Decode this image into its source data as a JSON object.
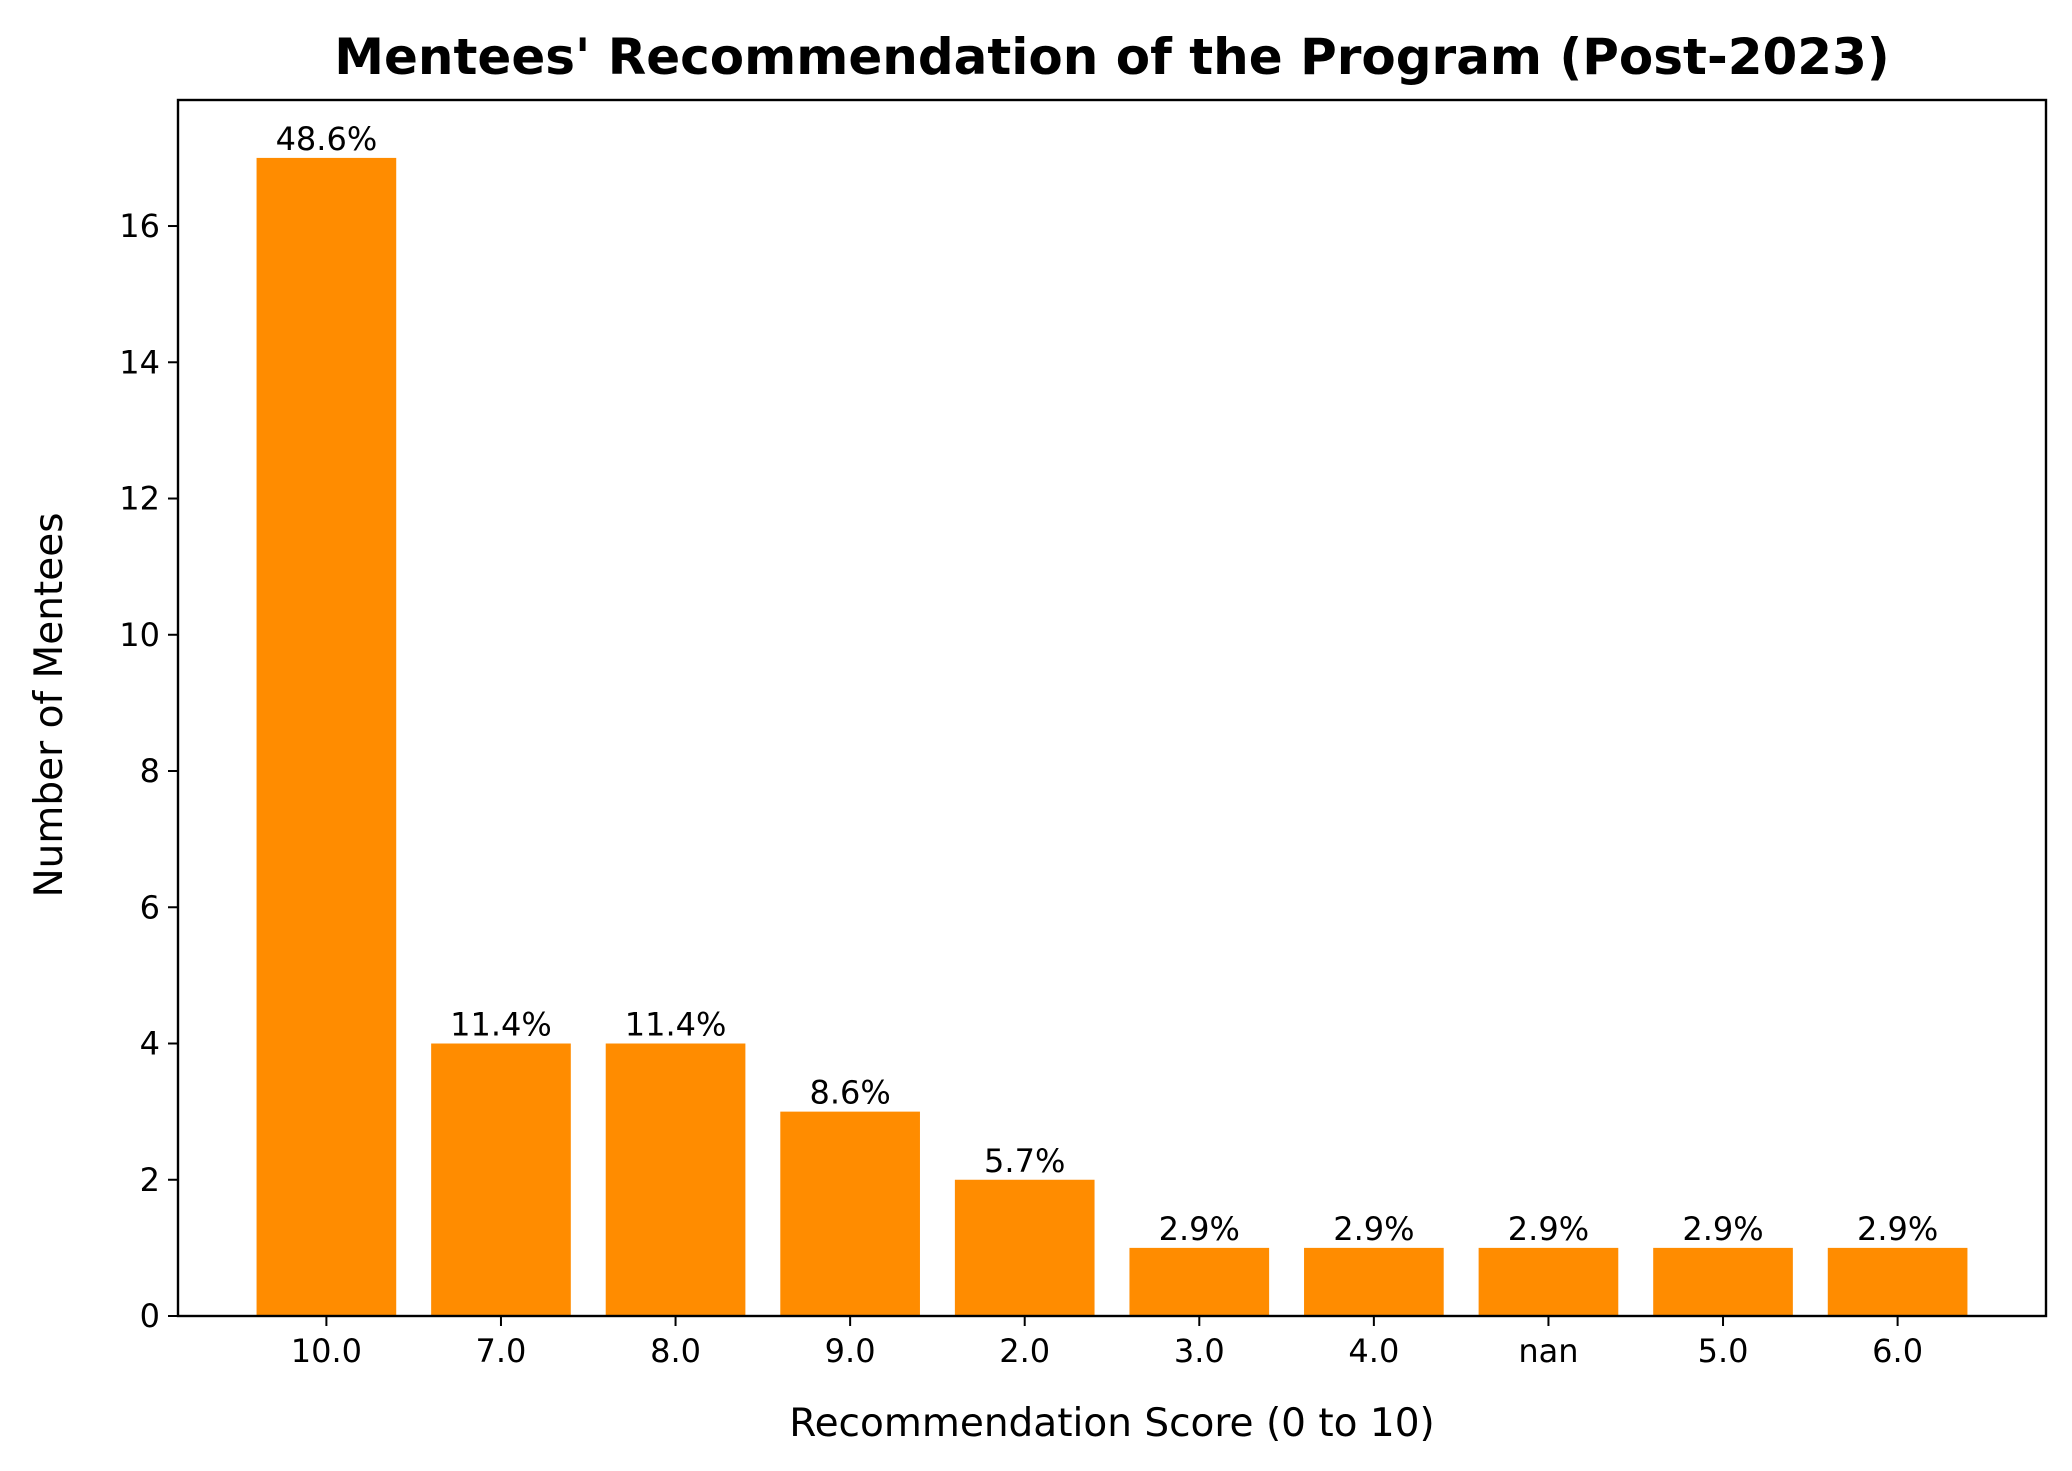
{
  "chart_data": {
    "type": "bar",
    "title": "Mentees' Recommendation of the Program (Post-2023)",
    "xlabel": "Recommendation Score (0 to 10)",
    "ylabel": "Number of Mentees",
    "categories": [
      "10.0",
      "7.0",
      "8.0",
      "9.0",
      "2.0",
      "3.0",
      "4.0",
      "nan",
      "5.0",
      "6.0"
    ],
    "values": [
      17,
      4,
      4,
      3,
      2,
      1,
      1,
      1,
      1,
      1
    ],
    "percent_labels": [
      "48.6%",
      "11.4%",
      "11.4%",
      "8.6%",
      "5.7%",
      "2.9%",
      "2.9%",
      "2.9%",
      "2.9%",
      "2.9%"
    ],
    "ylim": [
      0,
      17.85
    ],
    "yticks": [
      0,
      2,
      4,
      6,
      8,
      10,
      12,
      14,
      16
    ],
    "grid": false,
    "bar_color": "#ff8c00"
  }
}
